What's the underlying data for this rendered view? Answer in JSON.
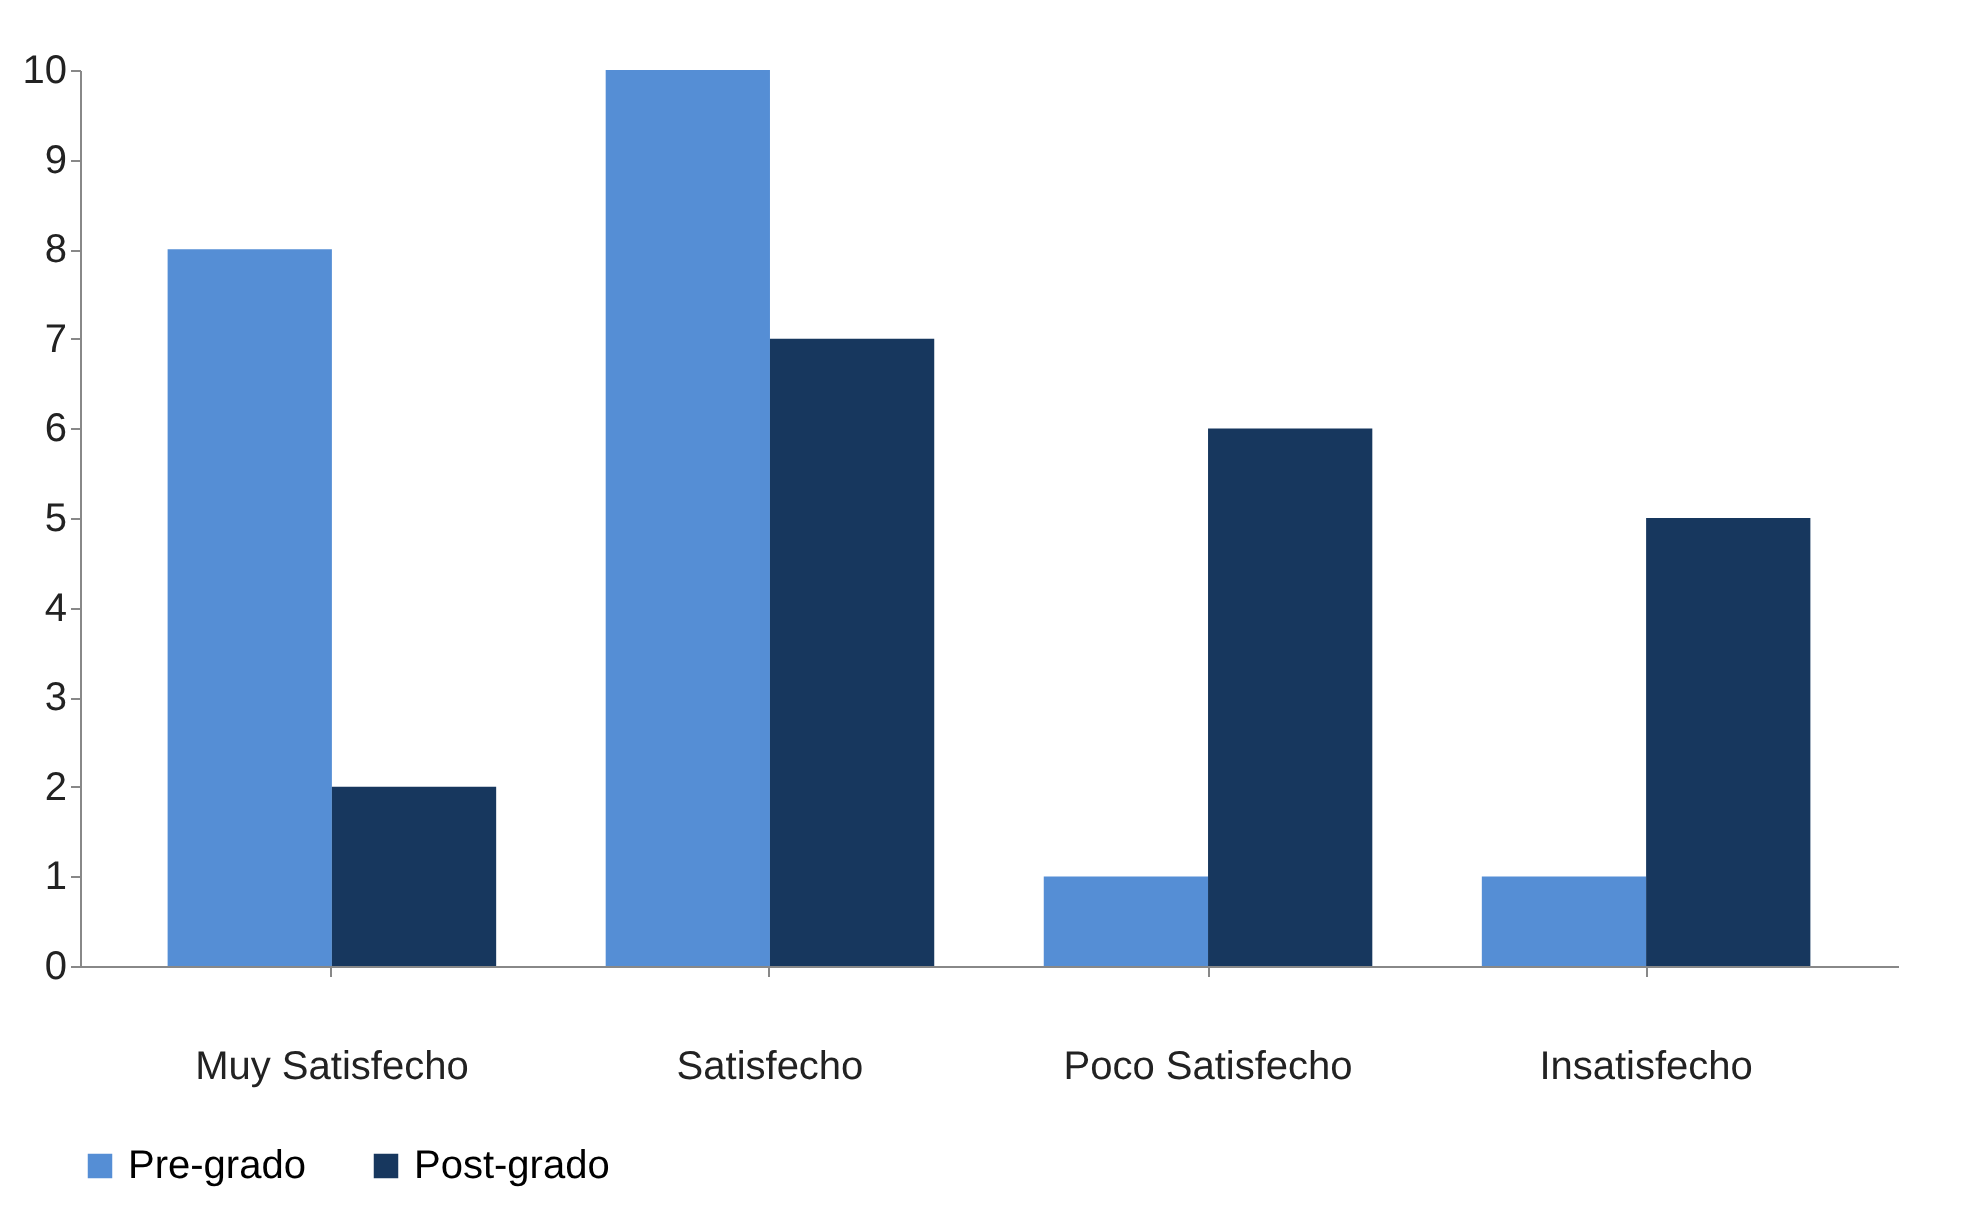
{
  "chart_data": {
    "type": "bar",
    "categories": [
      "Muy Satisfecho",
      "Satisfecho",
      "Poco Satisfecho",
      "Insatisfecho"
    ],
    "series": [
      {
        "name": "Pre-grado",
        "color": "#558ed5",
        "values": [
          8,
          10,
          1,
          1
        ]
      },
      {
        "name": "Post-grado",
        "color": "#17375e",
        "values": [
          2,
          7,
          6,
          5
        ]
      }
    ],
    "ylim": [
      0,
      10
    ],
    "yticks": [
      0,
      1,
      2,
      3,
      4,
      5,
      6,
      7,
      8,
      9,
      10
    ],
    "grid": false,
    "legend": "bottom"
  }
}
